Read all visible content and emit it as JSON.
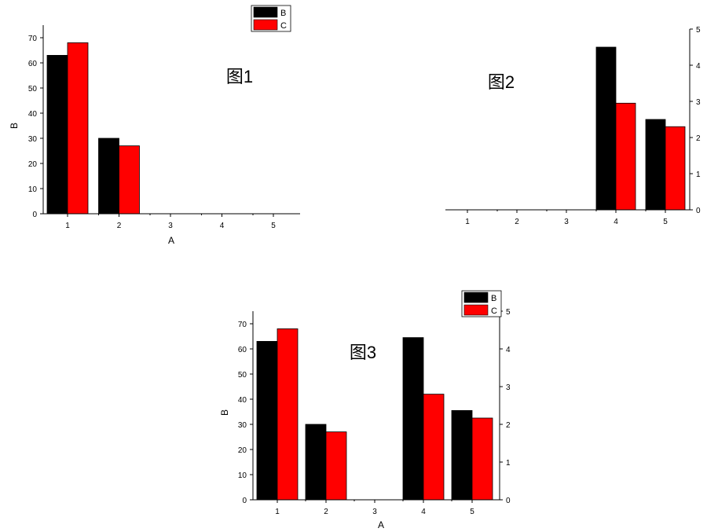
{
  "colors": {
    "series_b": "#000000",
    "series_c": "#ff0000",
    "axis": "#000000"
  },
  "chart_data": [
    {
      "type": "bar",
      "title": "图1",
      "categories": [
        "1",
        "2",
        "3",
        "4",
        "5"
      ],
      "series": [
        {
          "name": "B",
          "values": [
            63,
            30,
            0,
            0,
            0
          ]
        },
        {
          "name": "C",
          "values": [
            68,
            27,
            0,
            0,
            0
          ]
        }
      ],
      "xlabel": "A",
      "ylabel": "B",
      "ylim": [
        0,
        75
      ],
      "yticks": [
        "0",
        "10",
        "20",
        "30",
        "40",
        "50",
        "60",
        "70"
      ],
      "legend": [
        "B",
        "C"
      ],
      "legend_position": "top-right",
      "grid": false
    },
    {
      "type": "bar",
      "title": "图2",
      "categories": [
        "1",
        "2",
        "3",
        "4",
        "5"
      ],
      "series": [
        {
          "name": "B",
          "values": [
            0,
            0,
            0,
            4.5,
            2.5
          ]
        },
        {
          "name": "C",
          "values": [
            0,
            0,
            0,
            2.95,
            2.3
          ]
        }
      ],
      "xlabel": "",
      "ylabel": "",
      "ylim": [
        0,
        5
      ],
      "yticks": [
        "0",
        "1",
        "2",
        "3",
        "4",
        "5"
      ],
      "y_axis_side": "right",
      "grid": false
    },
    {
      "type": "bar",
      "title": "图3",
      "categories": [
        "1",
        "2",
        "3",
        "4",
        "5"
      ],
      "series": [
        {
          "name": "B",
          "values": [
            63,
            30,
            0,
            64.5,
            35.5
          ]
        },
        {
          "name": "C",
          "values": [
            68,
            27,
            0,
            42,
            32.5
          ]
        }
      ],
      "xlabel": "A",
      "ylabel": "B",
      "ylim": [
        0,
        75
      ],
      "yticks": [
        "0",
        "10",
        "20",
        "30",
        "40",
        "50",
        "60",
        "70"
      ],
      "y2lim": [
        0,
        5
      ],
      "y2ticks": [
        "0",
        "1",
        "2",
        "3",
        "4",
        "5"
      ],
      "legend": [
        "B",
        "C"
      ],
      "legend_position": "top-right",
      "grid": false
    }
  ]
}
